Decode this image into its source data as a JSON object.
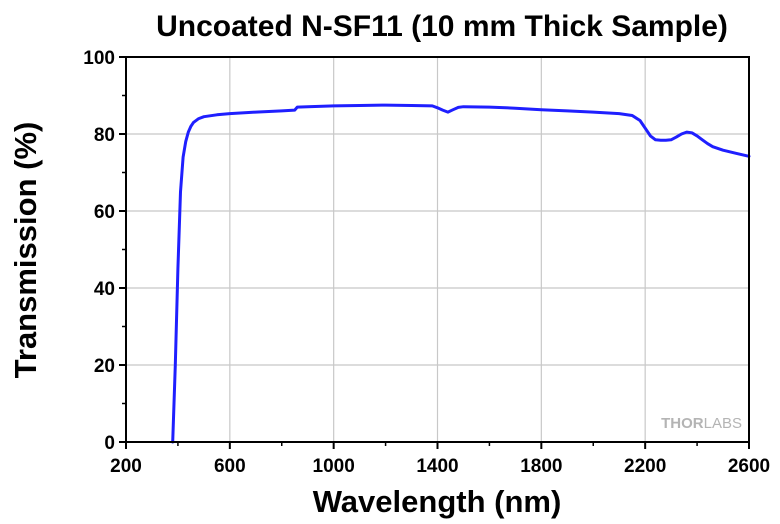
{
  "chart_data": {
    "type": "line",
    "title": "Uncoated N-SF11 (10 mm Thick Sample)",
    "xlabel": "Wavelength (nm)",
    "ylabel": "Transmission (%)",
    "xlim": [
      200,
      2600
    ],
    "ylim": [
      0,
      100
    ],
    "xticks": [
      "200",
      "600",
      "1000",
      "1400",
      "1800",
      "2200",
      "2600"
    ],
    "yticks": [
      "0",
      "20",
      "40",
      "60",
      "80",
      "100"
    ],
    "grid": true,
    "watermark": {
      "brand_a": "THOR",
      "brand_b": "LABS"
    },
    "line_color": "#1f1fff",
    "series": [
      {
        "name": "",
        "x": [
          380,
          390,
          400,
          410,
          420,
          430,
          440,
          450,
          460,
          480,
          500,
          550,
          600,
          700,
          800,
          850,
          860,
          900,
          1000,
          1100,
          1200,
          1300,
          1380,
          1400,
          1420,
          1440,
          1460,
          1480,
          1500,
          1600,
          1700,
          1800,
          1900,
          2000,
          2100,
          2150,
          2180,
          2200,
          2220,
          2240,
          2260,
          2280,
          2300,
          2320,
          2340,
          2360,
          2380,
          2400,
          2420,
          2440,
          2460,
          2500,
          2550,
          2600
        ],
        "y": [
          0,
          20,
          45,
          65,
          74,
          78,
          80.5,
          82,
          83,
          84,
          84.5,
          85,
          85.3,
          85.7,
          86,
          86.2,
          87,
          87.1,
          87.3,
          87.4,
          87.5,
          87.4,
          87.3,
          86.8,
          86.2,
          85.7,
          86.3,
          86.9,
          87.1,
          87,
          86.7,
          86.3,
          86,
          85.7,
          85.3,
          84.8,
          83.5,
          81.5,
          79.5,
          78.5,
          78.4,
          78.4,
          78.5,
          79.2,
          80,
          80.5,
          80.3,
          79.5,
          78.5,
          77.5,
          76.7,
          75.8,
          75,
          74.2
        ]
      }
    ]
  }
}
